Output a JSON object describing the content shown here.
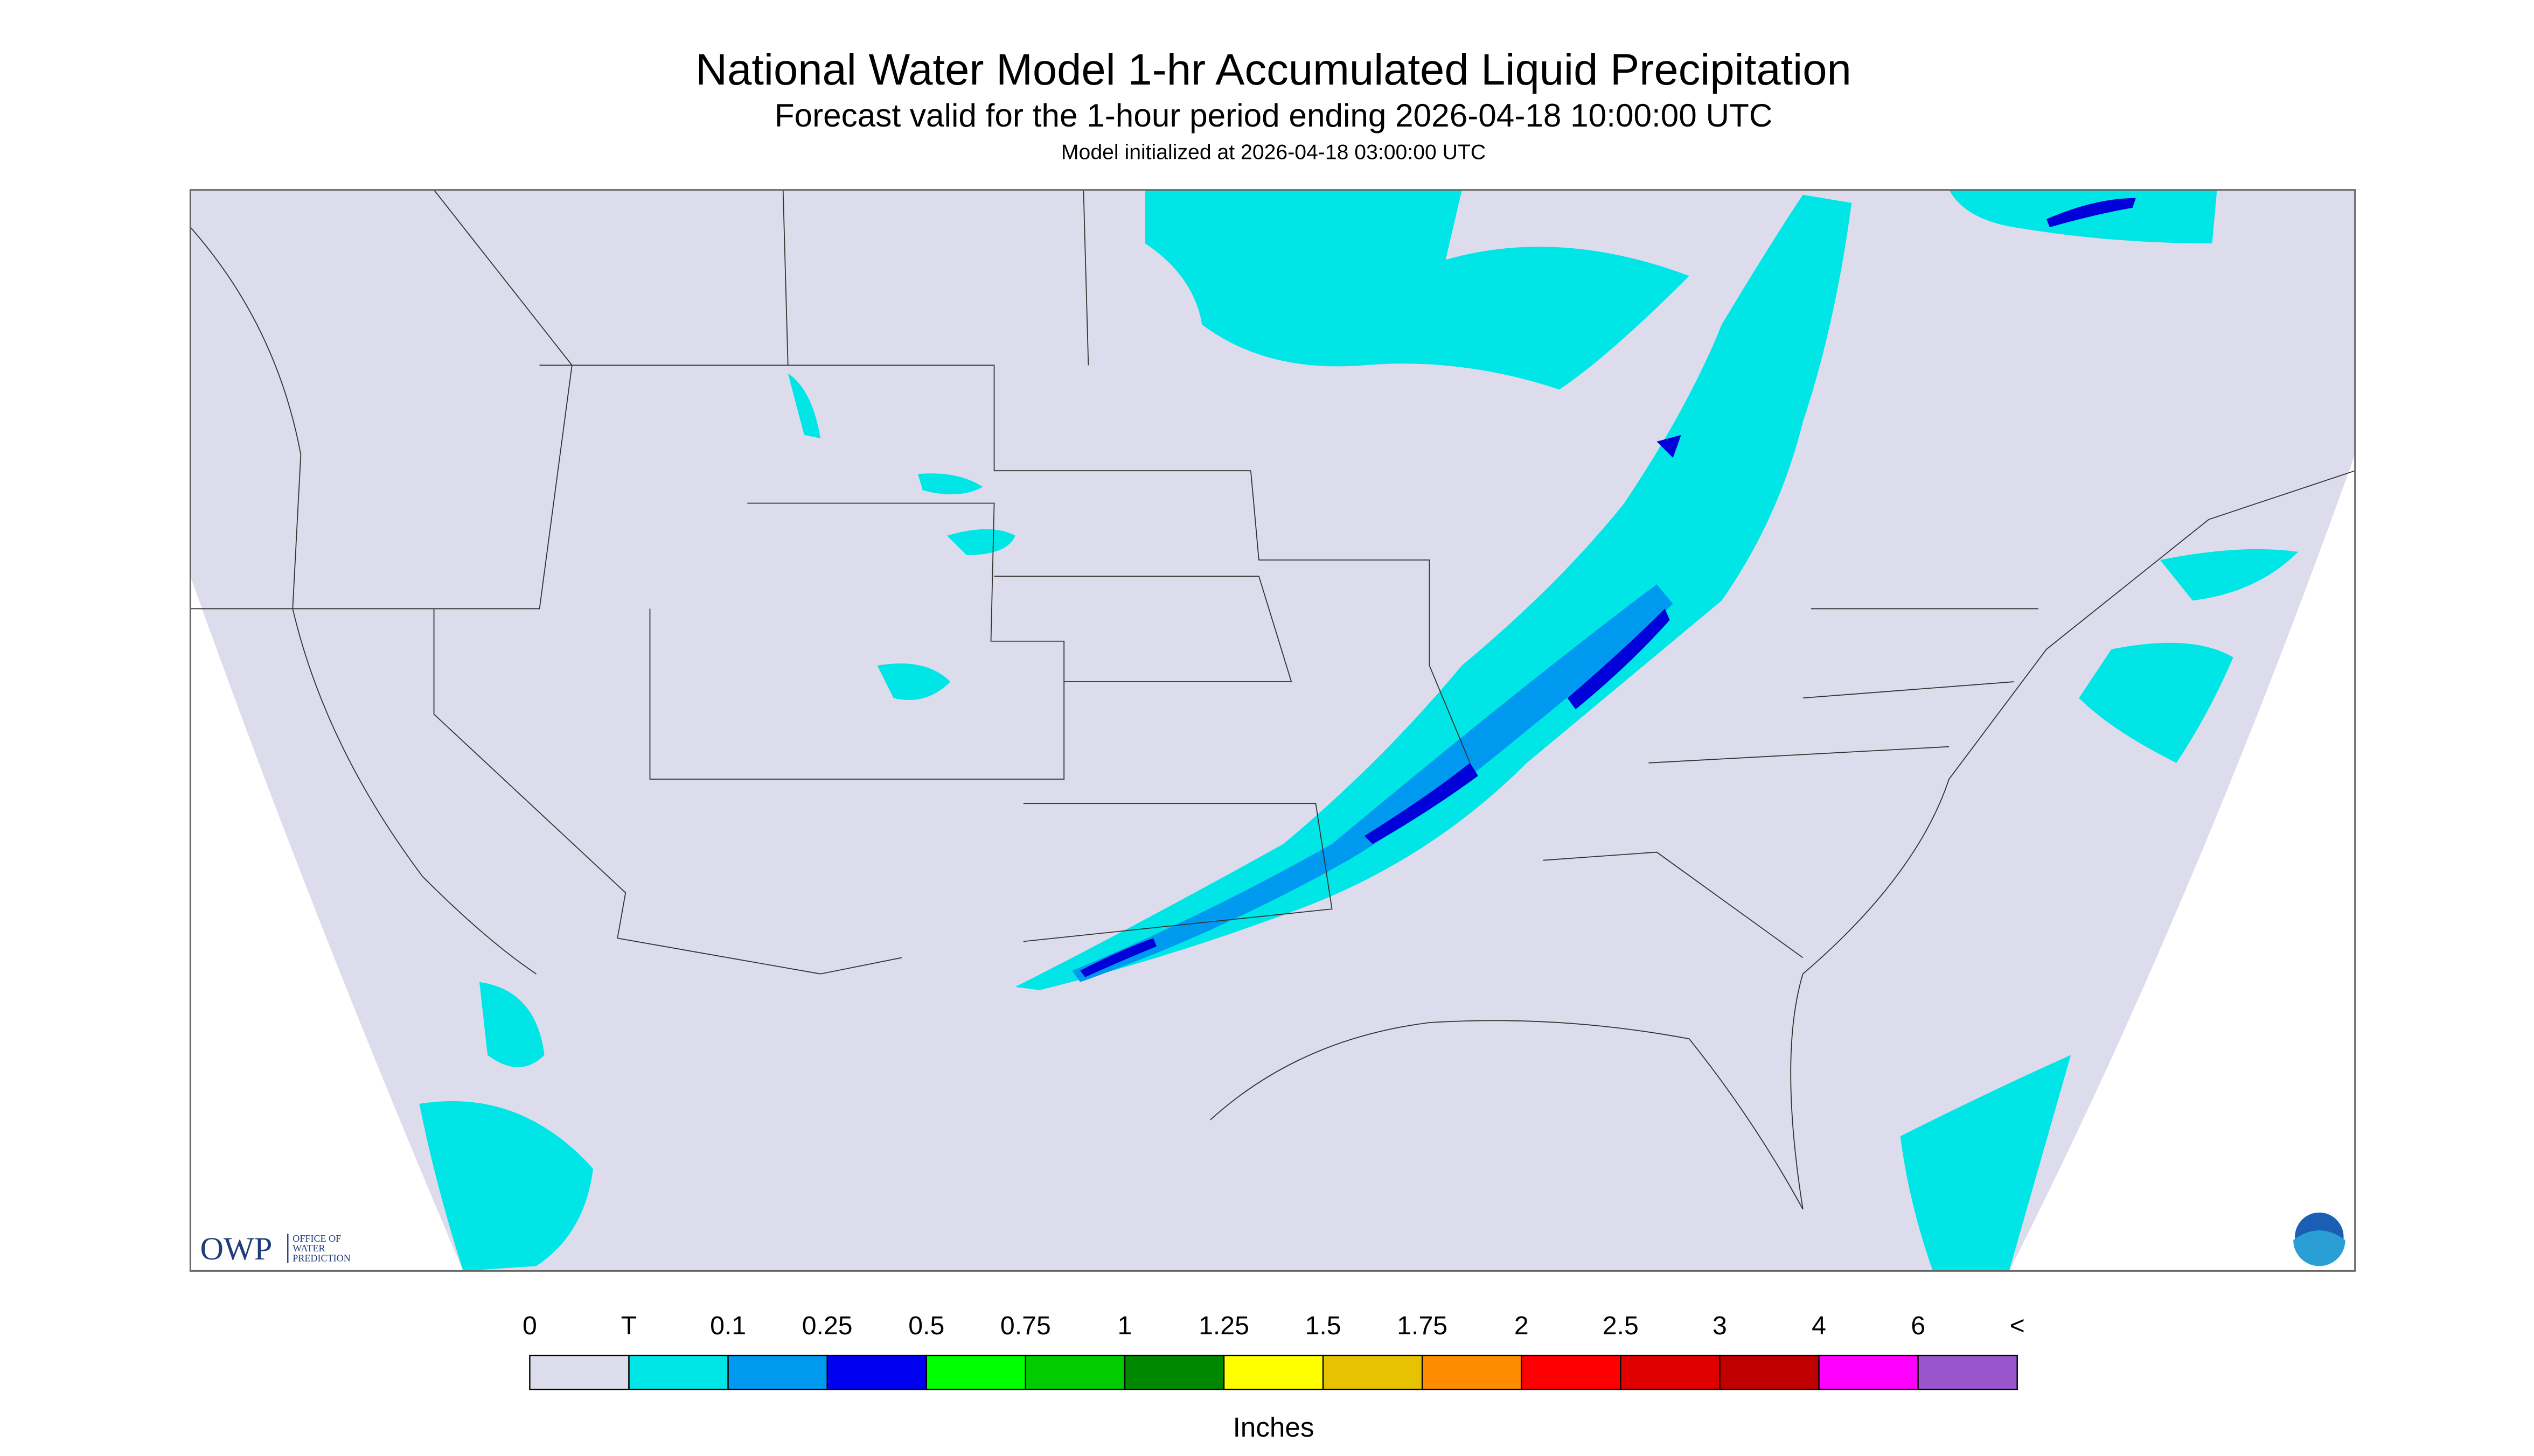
{
  "header": {
    "title": "National Water Model 1-hr Accumulated Liquid Precipitation",
    "subtitle": "Forecast valid for the 1-hour period ending 2026-04-18 10:00:00 UTC",
    "initialized": "Model initialized at 2026-04-18 03:00:00 UTC"
  },
  "logo": {
    "name": "OWP",
    "text": [
      "OFFICE OF",
      "WATER",
      "PREDICTION"
    ]
  },
  "legend": {
    "labels": [
      "0",
      "T",
      "0.1",
      "0.25",
      "0.5",
      "0.75",
      "1",
      "1.25",
      "1.5",
      "1.75",
      "2",
      "2.5",
      "3",
      "4",
      "6",
      "<"
    ],
    "colors": [
      "#dcdcec",
      "#00e5e5",
      "#0099f0",
      "#0000f0",
      "#00ff00",
      "#00cc00",
      "#008800",
      "#ffff00",
      "#e6c200",
      "#ff8c00",
      "#ff0000",
      "#e00000",
      "#c00000",
      "#ff00ff",
      "#9955cc"
    ],
    "units": "Inches"
  }
}
